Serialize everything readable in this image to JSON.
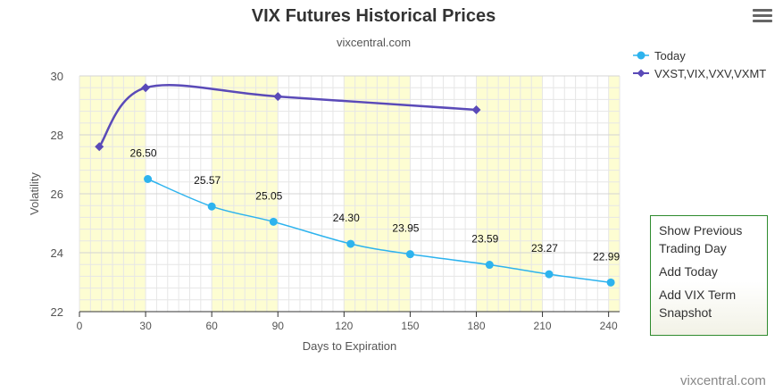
{
  "header": {
    "title": "VIX Futures Historical Prices",
    "subtitle": "vixcentral.com"
  },
  "menu": {
    "icon": "hamburger-menu-icon"
  },
  "side_panel": {
    "show_previous_line1": "Show Previous",
    "show_previous_line2": "Trading Day",
    "add_today": "Add Today",
    "add_vix_term_line1": "Add VIX Term",
    "add_vix_term_line2": "Snapshot"
  },
  "credit": "vixcentral.com",
  "colors": {
    "today": "#2db3ee",
    "vx": "#5a4ab8",
    "band": "#fdfdd2",
    "grid": "#e6e6e6"
  },
  "chart_data": {
    "type": "line",
    "xlabel": "Days to Expiration",
    "ylabel": "Volatility",
    "xlim": [
      0,
      245
    ],
    "ylim": [
      22,
      30
    ],
    "xticks": [
      0,
      30,
      60,
      90,
      120,
      150,
      180,
      210,
      240
    ],
    "yticks": [
      22,
      24,
      26,
      28,
      30
    ],
    "grid": true,
    "legend_position": "top-right",
    "series": [
      {
        "name": "Today",
        "marker": "circle",
        "x": [
          31,
          60,
          88,
          123,
          150,
          186,
          213,
          241
        ],
        "values": [
          26.5,
          25.57,
          25.05,
          24.3,
          23.95,
          23.59,
          23.27,
          22.99
        ],
        "labels": [
          "26.50",
          "25.57",
          "25.05",
          "24.30",
          "23.95",
          "23.59",
          "23.27",
          "22.99"
        ]
      },
      {
        "name": "VXST,VIX,VXV,VXMT",
        "marker": "diamond",
        "x": [
          9,
          30,
          90,
          180
        ],
        "values": [
          27.6,
          29.6,
          29.3,
          28.85
        ]
      }
    ]
  }
}
